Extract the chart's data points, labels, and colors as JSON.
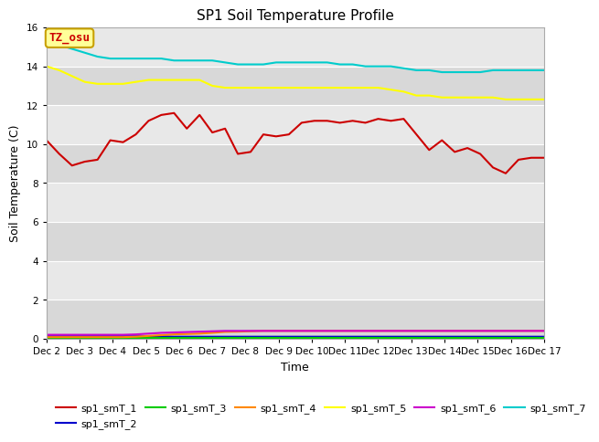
{
  "title": "SP1 Soil Temperature Profile",
  "xlabel": "Time",
  "ylabel": "Soil Temperature (C)",
  "ylim": [
    0,
    16
  ],
  "yticks": [
    0,
    2,
    4,
    6,
    8,
    10,
    12,
    14,
    16
  ],
  "background_color": "#e8e8e8",
  "fig_background": "#ffffff",
  "tz_label": "TZ_osu",
  "tz_bg": "#ffff99",
  "tz_border": "#c8a000",
  "tz_text_color": "#cc0000",
  "x_labels": [
    "Dec 2",
    "Dec 3",
    "Dec 4",
    "Dec 5",
    "Dec 6",
    "Dec 7",
    "Dec 8",
    "Dec 9",
    "Dec 10",
    "Dec 11",
    "Dec 12",
    "Dec 13",
    "Dec 14",
    "Dec 15",
    "Dec 16",
    "Dec 17"
  ],
  "series": {
    "sp1_smT_1": {
      "color": "#cc0000",
      "values": [
        10.2,
        9.5,
        8.9,
        9.1,
        9.2,
        10.2,
        10.1,
        10.5,
        11.2,
        11.5,
        11.6,
        10.8,
        11.5,
        10.6,
        10.8,
        9.5,
        9.6,
        10.5,
        10.4,
        10.5,
        11.1,
        11.2,
        11.2,
        11.1,
        11.2,
        11.1,
        11.3,
        11.2,
        11.3,
        10.5,
        9.7,
        10.2,
        9.6,
        9.8,
        9.5,
        8.8,
        8.5,
        9.2,
        9.3,
        9.3
      ]
    },
    "sp1_smT_2": {
      "color": "#0000cc",
      "values": [
        0.12,
        0.12,
        0.12,
        0.12,
        0.12,
        0.12,
        0.12,
        0.12,
        0.12,
        0.12,
        0.1,
        0.1,
        0.1,
        0.1,
        0.1,
        0.1,
        0.1,
        0.1,
        0.1,
        0.1,
        0.1,
        0.1,
        0.1,
        0.1,
        0.1,
        0.1,
        0.1,
        0.1,
        0.1,
        0.1,
        0.1,
        0.1,
        0.1,
        0.1,
        0.1,
        0.1,
        0.1,
        0.1,
        0.1,
        0.1
      ]
    },
    "sp1_smT_3": {
      "color": "#00cc00",
      "values": [
        0.02,
        0.02,
        0.02,
        0.02,
        0.02,
        0.02,
        0.02,
        0.02,
        0.02,
        0.02,
        0.02,
        0.02,
        0.02,
        0.02,
        0.02,
        0.02,
        0.02,
        0.02,
        0.02,
        0.02,
        0.02,
        0.02,
        0.02,
        0.02,
        0.02,
        0.02,
        0.02,
        0.02,
        0.02,
        0.02,
        0.02,
        0.02,
        0.02,
        0.02,
        0.02,
        0.02,
        0.02,
        0.02,
        0.02,
        0.02
      ]
    },
    "sp1_smT_4": {
      "color": "#ff8800",
      "values": [
        0.08,
        0.08,
        0.08,
        0.08,
        0.08,
        0.08,
        0.08,
        0.1,
        0.14,
        0.18,
        0.22,
        0.24,
        0.26,
        0.3,
        0.35,
        0.36,
        0.38,
        0.4,
        0.4,
        0.4,
        0.4,
        0.4,
        0.4,
        0.4,
        0.4,
        0.4,
        0.4,
        0.4,
        0.4,
        0.4,
        0.4,
        0.4,
        0.4,
        0.4,
        0.4,
        0.4,
        0.4,
        0.4,
        0.4,
        0.4
      ]
    },
    "sp1_smT_5": {
      "color": "#ffff00",
      "values": [
        14.0,
        13.8,
        13.5,
        13.2,
        13.1,
        13.1,
        13.1,
        13.2,
        13.3,
        13.3,
        13.3,
        13.3,
        13.3,
        13.0,
        12.9,
        12.9,
        12.9,
        12.9,
        12.9,
        12.9,
        12.9,
        12.9,
        12.9,
        12.9,
        12.9,
        12.9,
        12.9,
        12.8,
        12.7,
        12.5,
        12.5,
        12.4,
        12.4,
        12.4,
        12.4,
        12.4,
        12.3,
        12.3,
        12.3,
        12.3
      ]
    },
    "sp1_smT_6": {
      "color": "#cc00cc",
      "values": [
        0.2,
        0.2,
        0.2,
        0.2,
        0.2,
        0.2,
        0.2,
        0.22,
        0.26,
        0.3,
        0.32,
        0.34,
        0.36,
        0.38,
        0.4,
        0.4,
        0.4,
        0.4,
        0.4,
        0.4,
        0.4,
        0.4,
        0.4,
        0.4,
        0.4,
        0.4,
        0.4,
        0.4,
        0.4,
        0.4,
        0.4,
        0.4,
        0.4,
        0.4,
        0.4,
        0.4,
        0.4,
        0.4,
        0.4,
        0.4
      ]
    },
    "sp1_smT_7": {
      "color": "#00cccc",
      "values": [
        15.2,
        15.1,
        14.9,
        14.7,
        14.5,
        14.4,
        14.4,
        14.4,
        14.4,
        14.4,
        14.3,
        14.3,
        14.3,
        14.3,
        14.2,
        14.1,
        14.1,
        14.1,
        14.2,
        14.2,
        14.2,
        14.2,
        14.2,
        14.1,
        14.1,
        14.0,
        14.0,
        14.0,
        13.9,
        13.8,
        13.8,
        13.7,
        13.7,
        13.7,
        13.7,
        13.8,
        13.8,
        13.8,
        13.8,
        13.8
      ]
    }
  },
  "legend_order": [
    "sp1_smT_1",
    "sp1_smT_2",
    "sp1_smT_3",
    "sp1_smT_4",
    "sp1_smT_5",
    "sp1_smT_6",
    "sp1_smT_7"
  ],
  "band_colors": [
    "#e8e8e8",
    "#d8d8d8"
  ]
}
